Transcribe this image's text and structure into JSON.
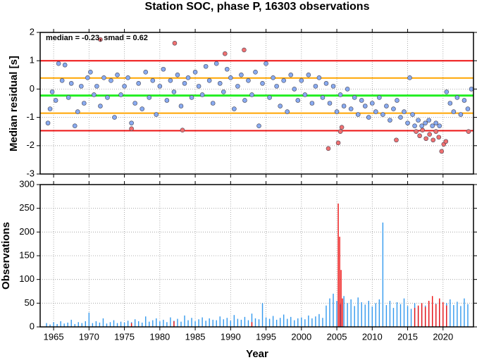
{
  "chart_data": [
    {
      "type": "scatter",
      "title": "Station SOC, phase P, 16303 observations",
      "ylabel": "Median residual [s]",
      "annotation": "median = -0.23, smad = 0.62",
      "xlim": [
        1963.1,
        2024.3
      ],
      "xticks": [
        1965,
        1970,
        1975,
        1980,
        1985,
        1990,
        1995,
        2000,
        2005,
        2010,
        2015,
        2020
      ],
      "ylim": [
        -3,
        2
      ],
      "yticks": [
        -3,
        -2,
        -1,
        0,
        1,
        2
      ],
      "grid": true,
      "hlines": [
        {
          "value": 1,
          "color": "#ee1111"
        },
        {
          "value": 0.39,
          "color": "#ffa500"
        },
        {
          "value": -0.23,
          "color": "#22ee22"
        },
        {
          "value": -0.85,
          "color": "#ffa500"
        },
        {
          "value": -1.47,
          "color": "#ee1111"
        }
      ],
      "series": [
        {
          "color": "#88aaf0",
          "x": [
            1964.2,
            1964.5,
            1964.8,
            1965.3,
            1965.7,
            1966.2,
            1966.6,
            1967.1,
            1967.5,
            1968.0,
            1968.4,
            1968.9,
            1969.3,
            1969.8,
            1970.2,
            1970.7,
            1971.1,
            1971.6,
            1972.1,
            1972.6,
            1973.1,
            1973.6,
            1974.0,
            1974.5,
            1975.0,
            1975.5,
            1976.0,
            1976.5,
            1977.0,
            1977.5,
            1978.0,
            1978.5,
            1979.0,
            1979.5,
            1980.0,
            1980.5,
            1981.0,
            1981.5,
            1982.0,
            1982.5,
            1983.0,
            1983.5,
            1984.0,
            1984.5,
            1985.0,
            1985.5,
            1986.0,
            1986.5,
            1987.0,
            1987.5,
            1988.0,
            1988.5,
            1989.0,
            1989.5,
            1990.0,
            1990.5,
            1991.0,
            1991.5,
            1992.0,
            1992.5,
            1993.0,
            1993.5,
            1994.0,
            1994.5,
            1995.0,
            1995.5,
            1996.0,
            1996.5,
            1997.0,
            1997.5,
            1998.0,
            1998.5,
            1999.0,
            1999.5,
            2000.0,
            2000.5,
            2001.0,
            2001.5,
            2002.0,
            2002.5,
            2003.0,
            2003.5,
            2004.0,
            2004.5,
            2005.0,
            2005.5,
            2006.0,
            2006.5,
            2007.0,
            2007.5,
            2008.0,
            2008.5,
            2009.0,
            2009.5,
            2010.0,
            2010.5,
            2011.0,
            2011.5,
            2012.0,
            2012.5,
            2013.0,
            2013.5,
            2014.0,
            2014.5,
            2015.0,
            2015.3,
            2015.7,
            2016.0,
            2016.5,
            2017.0,
            2017.5,
            2018.0,
            2018.5,
            2019.0,
            2019.5,
            2020.5,
            2021.0,
            2021.5,
            2022.0,
            2022.5,
            2023.0,
            2023.5,
            2024.0
          ],
          "values": [
            -1.2,
            -0.7,
            -0.1,
            -0.4,
            0.9,
            0.3,
            0.85,
            -0.3,
            0.2,
            -1.3,
            -0.8,
            0.1,
            -0.5,
            0.4,
            0.6,
            -0.2,
            0.1,
            -0.6,
            0.4,
            -0.3,
            0.3,
            -1.0,
            0.5,
            -0.2,
            0.1,
            0.4,
            -1.2,
            -0.5,
            0.2,
            -0.7,
            0.6,
            -0.3,
            0.3,
            -0.9,
            0.1,
            0.7,
            -0.4,
            0.3,
            -0.1,
            0.5,
            -0.6,
            0.2,
            0.4,
            -0.3,
            0.6,
            0.1,
            -0.2,
            0.8,
            0.3,
            -0.5,
            0.9,
            0.2,
            -0.1,
            0.7,
            0.4,
            -0.7,
            0.1,
            0.5,
            -0.4,
            0.3,
            -0.2,
            0.6,
            -1.3,
            0.2,
            0.9,
            -0.3,
            0.4,
            0.1,
            -0.6,
            0.3,
            -0.8,
            0.5,
            0.0,
            -0.4,
            0.3,
            -0.2,
            0.5,
            -0.5,
            0.1,
            0.4,
            -0.3,
            0.2,
            -0.5,
            0.1,
            -0.8,
            -0.2,
            -0.6,
            0.0,
            -0.7,
            -0.3,
            -0.9,
            -0.4,
            -0.6,
            -1.0,
            -0.5,
            -0.8,
            -0.3,
            -0.9,
            -0.6,
            -1.1,
            -0.7,
            -0.4,
            -1.0,
            -0.8,
            -1.2,
            0.4,
            -0.9,
            -1.3,
            -1.1,
            -1.3,
            -1.2,
            -1.1,
            -1.3,
            -1.2,
            -1.3,
            -0.1,
            -0.5,
            -0.8,
            -0.3,
            -0.9,
            -0.4,
            -0.7,
            0.0
          ]
        },
        {
          "color": "#f07070",
          "x": [
            1971.6,
            1976.0,
            1982.1,
            1983.2,
            1989.2,
            1991.9,
            2003.8,
            2005.2,
            2005.5,
            2005.7,
            2013.4,
            2016.2,
            2016.7,
            2017.1,
            2017.6,
            2018.1,
            2018.6,
            2019.0,
            2019.4,
            2019.8,
            2020.1,
            2020.4,
            2023.6
          ],
          "values": [
            1.75,
            -1.4,
            1.62,
            -1.45,
            1.25,
            1.38,
            -2.1,
            -1.9,
            -1.5,
            -1.35,
            -1.8,
            -1.5,
            -1.65,
            -1.45,
            -1.75,
            -1.6,
            -1.8,
            -1.5,
            -1.7,
            -2.2,
            -1.95,
            -1.85,
            -1.5
          ]
        }
      ]
    },
    {
      "type": "bar",
      "ylabel": "Observations",
      "xlabel": "Year",
      "xlim": [
        1963.1,
        2024.3
      ],
      "xticks": [
        1965,
        1970,
        1975,
        1980,
        1985,
        1990,
        1995,
        2000,
        2005,
        2010,
        2015,
        2020
      ],
      "ylim": [
        0,
        300
      ],
      "yticks": [
        0,
        50,
        100,
        150,
        200,
        250,
        300
      ],
      "grid": true,
      "series": [
        {
          "color": "#3399ee",
          "x": [
            1964.0,
            1964.5,
            1965.0,
            1965.5,
            1966.0,
            1966.5,
            1967.0,
            1967.5,
            1968.0,
            1968.5,
            1969.0,
            1969.5,
            1970.0,
            1970.5,
            1971.0,
            1971.5,
            1972.0,
            1972.5,
            1973.0,
            1973.5,
            1974.0,
            1974.5,
            1975.0,
            1975.5,
            1976.0,
            1976.5,
            1977.0,
            1977.5,
            1978.0,
            1978.5,
            1979.0,
            1979.5,
            1980.0,
            1980.5,
            1981.0,
            1981.5,
            1982.0,
            1982.5,
            1983.0,
            1983.5,
            1984.0,
            1984.5,
            1985.0,
            1985.5,
            1986.0,
            1986.5,
            1987.0,
            1987.5,
            1988.0,
            1988.5,
            1989.0,
            1989.5,
            1990.0,
            1990.5,
            1991.0,
            1991.5,
            1992.0,
            1992.5,
            1993.0,
            1993.5,
            1994.0,
            1994.5,
            1995.0,
            1995.5,
            1996.0,
            1996.5,
            1997.0,
            1997.5,
            1998.0,
            1998.5,
            1999.0,
            1999.5,
            2000.0,
            2000.5,
            2001.0,
            2001.5,
            2002.0,
            2002.5,
            2003.0,
            2003.5,
            2004.0,
            2004.5,
            2005.0,
            2005.5,
            2006.0,
            2006.5,
            2007.0,
            2007.5,
            2008.0,
            2008.5,
            2009.0,
            2009.5,
            2010.0,
            2010.5,
            2011.0,
            2011.5,
            2012.0,
            2012.5,
            2013.0,
            2013.5,
            2014.0,
            2014.5,
            2015.0,
            2015.5,
            2016.0,
            2016.5,
            2017.0,
            2017.5,
            2018.0,
            2018.5,
            2019.0,
            2019.5,
            2020.0,
            2020.5,
            2021.0,
            2021.5,
            2022.0,
            2022.5,
            2023.0,
            2023.5
          ],
          "values": [
            8,
            5,
            10,
            6,
            12,
            7,
            9,
            15,
            6,
            10,
            8,
            12,
            30,
            8,
            12,
            9,
            18,
            7,
            10,
            14,
            8,
            11,
            9,
            13,
            10,
            16,
            12,
            9,
            22,
            11,
            14,
            18,
            12,
            15,
            10,
            20,
            13,
            17,
            11,
            24,
            14,
            19,
            12,
            16,
            20,
            13,
            18,
            15,
            14,
            22,
            16,
            19,
            13,
            25,
            17,
            15,
            21,
            14,
            28,
            18,
            16,
            50,
            20,
            17,
            23,
            15,
            19,
            26,
            17,
            21,
            14,
            18,
            20,
            16,
            24,
            18,
            22,
            27,
            19,
            45,
            60,
            70,
            55,
            48,
            65,
            50,
            58,
            44,
            62,
            52,
            47,
            55,
            43,
            50,
            58,
            220,
            46,
            55,
            40,
            52,
            48,
            60,
            44,
            38,
            50,
            42,
            47,
            45,
            52,
            43,
            49,
            55,
            41,
            50,
            58,
            46,
            53,
            44,
            60,
            48
          ]
        },
        {
          "color": "#ee1111",
          "x": [
            1976.0,
            1982.0,
            1993.0,
            2005.2,
            2005.4,
            2005.6,
            2005.8,
            2016.0,
            2016.5,
            2017.0,
            2017.5,
            2018.0,
            2018.5,
            2019.0,
            2019.5,
            2020.0,
            2020.5
          ],
          "values": [
            8,
            12,
            10,
            260,
            190,
            120,
            60,
            40,
            45,
            50,
            42,
            55,
            65,
            48,
            60,
            52,
            45
          ]
        }
      ]
    }
  ]
}
